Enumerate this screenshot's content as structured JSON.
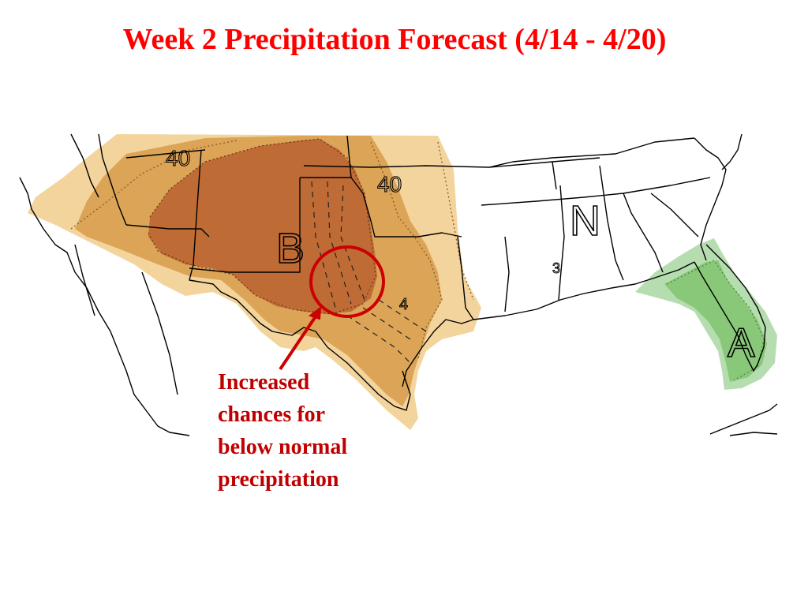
{
  "title": "Week 2 Precipitation Forecast (4/14 - 4/20)",
  "map": {
    "category_labels": {
      "below": "B",
      "normal": "N",
      "above": "A"
    },
    "contour_labels": {
      "west_40": "40",
      "central_40": "40",
      "texas_4": "4",
      "louisiana_3": "3"
    },
    "colors": {
      "below_light": "#f3d49c",
      "below_medium": "#dca457",
      "below_strong": "#bf6b35",
      "above_light": "#b6ddb0",
      "above_medium": "#88c878",
      "highlight_circle": "#cc0000"
    }
  },
  "callout": {
    "lines": [
      "Increased",
      "chances for",
      "below normal",
      "precipitation"
    ]
  }
}
